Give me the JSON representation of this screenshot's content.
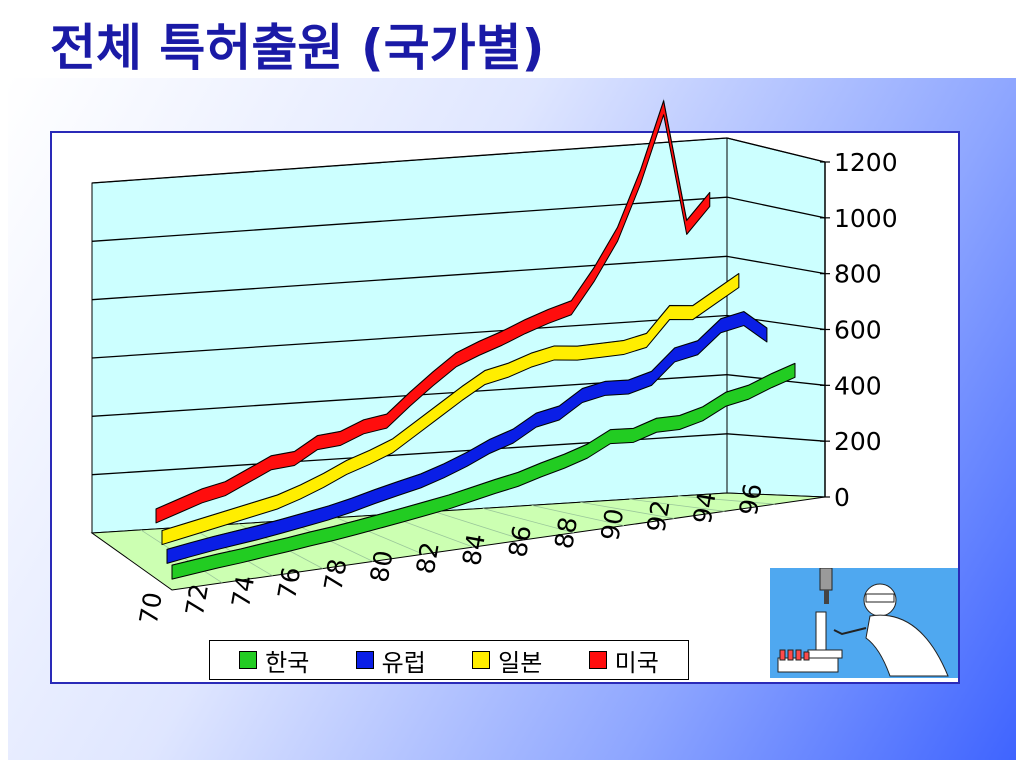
{
  "slide": {
    "title": "전체 특허출원 (국가별)"
  },
  "chart_data": {
    "type": "line",
    "style": "3d",
    "x": [
      "70",
      "71",
      "72",
      "73",
      "74",
      "75",
      "76",
      "77",
      "78",
      "79",
      "80",
      "81",
      "82",
      "83",
      "84",
      "85",
      "86",
      "87",
      "88",
      "89",
      "90",
      "91",
      "92",
      "93",
      "94",
      "95",
      "96",
      "97"
    ],
    "xticks": [
      "70",
      "72",
      "74",
      "76",
      "78",
      "80",
      "82",
      "84",
      "86",
      "88",
      "90",
      "92",
      "94",
      "96"
    ],
    "yticks": [
      "0",
      "200",
      "400",
      "600",
      "800",
      "1000",
      "1200"
    ],
    "ylim": [
      0,
      1200
    ],
    "grid": true,
    "legend": "bottom",
    "series": [
      {
        "name": "한국",
        "color": "#22cc22",
        "values": [
          20,
          25,
          30,
          33,
          38,
          42,
          48,
          52,
          58,
          65,
          72,
          80,
          88,
          100,
          112,
          122,
          140,
          155,
          175,
          210,
          200,
          220,
          215,
          230,
          265,
          275,
          300,
          320
        ]
      },
      {
        "name": "유럽",
        "color": "#0a1ee6",
        "values": [
          40,
          48,
          55,
          60,
          65,
          72,
          80,
          88,
          100,
          115,
          128,
          140,
          160,
          185,
          215,
          235,
          275,
          285,
          330,
          340,
          330,
          345,
          410,
          420,
          480,
          490,
          420,
          null
        ]
      },
      {
        "name": "일본",
        "color": "#ffee00",
        "values": [
          70,
          80,
          90,
          100,
          110,
          120,
          140,
          165,
          195,
          215,
          240,
          285,
          330,
          375,
          415,
          425,
          445,
          455,
          440,
          435,
          430,
          440,
          520,
          505,
          545,
          585,
          null,
          null
        ]
      },
      {
        "name": "미국",
        "color": "#ff0d0d",
        "values": [
          110,
          130,
          150,
          160,
          190,
          220,
          220,
          260,
          260,
          285,
          290,
          350,
          405,
          455,
          480,
          500,
          525,
          545,
          560,
          660,
          780,
          960,
          1180,
          760,
          840,
          null,
          null,
          null
        ]
      }
    ]
  },
  "colors": {
    "panel_gradient": [
      "#ffffff",
      "#3f64ff"
    ],
    "chart_border": "#2a2ab8",
    "title": "#1a1aa6"
  },
  "icons": {
    "clipart": "scientist-with-microscope"
  }
}
